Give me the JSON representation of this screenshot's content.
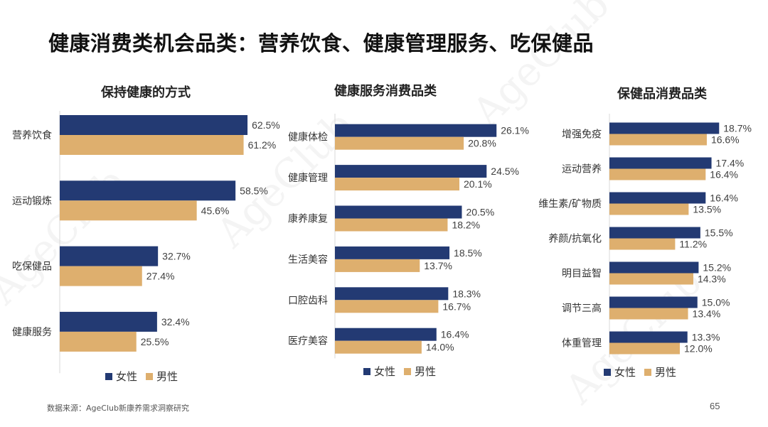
{
  "title": "健康消费类机会品类：营养饮食、健康管理服务、吃保健品",
  "colors": {
    "female": "#233a73",
    "male": "#deaf6e"
  },
  "legend": {
    "female": "女性",
    "male": "男性"
  },
  "watermark": "AgeClub",
  "source": "数据来源：AgeClub新康养需求洞察研究",
  "page_number": "65",
  "chart_data": [
    {
      "type": "bar",
      "orientation": "horizontal",
      "title": "保持健康的方式",
      "categories": [
        "营养饮食",
        "运动锻炼",
        "吃保健品",
        "健康服务"
      ],
      "series": [
        {
          "name": "女性",
          "values": [
            62.5,
            58.5,
            32.7,
            32.4
          ],
          "labels": [
            "62.5%",
            "58.5%",
            "32.7%",
            "32.4%"
          ]
        },
        {
          "name": "男性",
          "values": [
            61.2,
            45.6,
            27.4,
            25.5
          ],
          "labels": [
            "61.2%",
            "45.6%",
            "27.4%",
            "25.5%"
          ]
        }
      ],
      "xlim": [
        0,
        80
      ],
      "legend": "bottom"
    },
    {
      "type": "bar",
      "orientation": "horizontal",
      "title": "健康服务消费品类",
      "categories": [
        "健康体检",
        "健康管理",
        "康养康复",
        "生活美容",
        "口腔齿科",
        "医疗美容"
      ],
      "series": [
        {
          "name": "女性",
          "values": [
            26.1,
            24.5,
            20.5,
            18.5,
            18.3,
            16.4
          ],
          "labels": [
            "26.1%",
            "24.5%",
            "20.5%",
            "18.5%",
            "18.3%",
            "16.4%"
          ]
        },
        {
          "name": "男性",
          "values": [
            20.8,
            20.1,
            18.2,
            13.7,
            16.7,
            14.0
          ],
          "labels": [
            "20.8%",
            "20.1%",
            "18.2%",
            "13.7%",
            "16.7%",
            "14.0%"
          ]
        }
      ],
      "xlim": [
        0,
        34
      ],
      "legend": "bottom"
    },
    {
      "type": "bar",
      "orientation": "horizontal",
      "title": "保健品消费品类",
      "categories": [
        "增强免疫",
        "运动营养",
        "维生素/矿物质",
        "养颜/抗氧化",
        "明目益智",
        "调节三高",
        "体重管理"
      ],
      "series": [
        {
          "name": "女性",
          "values": [
            18.7,
            17.4,
            16.4,
            15.5,
            15.2,
            15.0,
            13.3
          ],
          "labels": [
            "18.7%",
            "17.4%",
            "16.4%",
            "15.5%",
            "15.2%",
            "15.0%",
            "13.3%"
          ]
        },
        {
          "name": "男性",
          "values": [
            16.6,
            16.4,
            13.5,
            11.2,
            14.3,
            13.4,
            12.0
          ],
          "labels": [
            "16.6%",
            "16.4%",
            "13.5%",
            "11.2%",
            "14.3%",
            "13.4%",
            "12.0%"
          ]
        }
      ],
      "xlim": [
        0,
        24
      ],
      "legend": "bottom"
    }
  ]
}
